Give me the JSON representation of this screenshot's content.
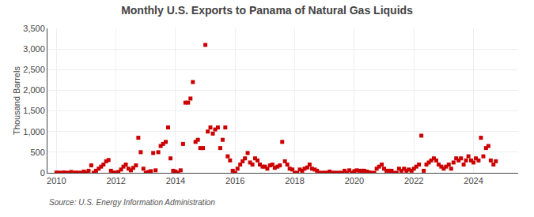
{
  "chart_data": {
    "type": "scatter",
    "title": "Monthly U.S. Exports to Panama of Natural Gas Liquids",
    "ylabel": "Thousand Barrels",
    "annotations": [
      "Source: U.S. Energy Information Administration"
    ],
    "color": "#cc0000",
    "marker": "square",
    "grid": true,
    "xlim": [
      2009.7,
      2025.5
    ],
    "xticks": [
      2010,
      2012,
      2014,
      2016,
      2018,
      2020,
      2022,
      2024
    ],
    "ylim": [
      0,
      3500
    ],
    "yticks": [
      0,
      500,
      {
        "value": 1000,
        "label": "1,000"
      },
      {
        "value": 1500,
        "label": "1,500"
      },
      {
        "value": 2000,
        "label": "2,000"
      },
      {
        "value": 2500,
        "label": "2,500"
      },
      {
        "value": 3000,
        "label": "3,000"
      },
      {
        "value": 3500,
        "label": "3,500"
      }
    ],
    "x": [
      2010.0,
      2010.08,
      2010.17,
      2010.25,
      2010.33,
      2010.42,
      2010.5,
      2010.58,
      2010.67,
      2010.75,
      2010.83,
      2010.92,
      2011.0,
      2011.08,
      2011.17,
      2011.25,
      2011.33,
      2011.42,
      2011.5,
      2011.58,
      2011.67,
      2011.75,
      2011.83,
      2011.92,
      2012.0,
      2012.08,
      2012.17,
      2012.25,
      2012.33,
      2012.42,
      2012.5,
      2012.58,
      2012.67,
      2012.75,
      2012.83,
      2012.92,
      2013.0,
      2013.08,
      2013.17,
      2013.25,
      2013.33,
      2013.42,
      2013.5,
      2013.58,
      2013.67,
      2013.75,
      2013.83,
      2013.92,
      2014.0,
      2014.08,
      2014.17,
      2014.25,
      2014.33,
      2014.42,
      2014.5,
      2014.58,
      2014.67,
      2014.75,
      2014.83,
      2014.92,
      2015.0,
      2015.08,
      2015.17,
      2015.25,
      2015.33,
      2015.42,
      2015.5,
      2015.58,
      2015.67,
      2015.75,
      2015.83,
      2015.92,
      2016.0,
      2016.08,
      2016.17,
      2016.25,
      2016.33,
      2016.42,
      2016.5,
      2016.58,
      2016.67,
      2016.75,
      2016.83,
      2016.92,
      2017.0,
      2017.08,
      2017.17,
      2017.25,
      2017.33,
      2017.42,
      2017.5,
      2017.58,
      2017.67,
      2017.75,
      2017.83,
      2017.92,
      2018.0,
      2018.08,
      2018.17,
      2018.25,
      2018.33,
      2018.42,
      2018.5,
      2018.58,
      2018.67,
      2018.75,
      2018.83,
      2018.92,
      2019.0,
      2019.08,
      2019.17,
      2019.25,
      2019.33,
      2019.42,
      2019.5,
      2019.58,
      2019.67,
      2019.75,
      2019.83,
      2019.92,
      2020.0,
      2020.08,
      2020.17,
      2020.25,
      2020.33,
      2020.42,
      2020.5,
      2020.58,
      2020.67,
      2020.75,
      2020.83,
      2020.92,
      2021.0,
      2021.08,
      2021.17,
      2021.25,
      2021.33,
      2021.42,
      2021.5,
      2021.58,
      2021.67,
      2021.75,
      2021.83,
      2021.92,
      2022.0,
      2022.08,
      2022.17,
      2022.25,
      2022.33,
      2022.42,
      2022.5,
      2022.58,
      2022.67,
      2022.75,
      2022.83,
      2022.92,
      2023.0,
      2023.08,
      2023.17,
      2023.25,
      2023.33,
      2023.42,
      2023.5,
      2023.58,
      2023.67,
      2023.75,
      2023.83,
      2023.92,
      2024.0,
      2024.08,
      2024.17,
      2024.25,
      2024.33,
      2024.42,
      2024.5,
      2024.58,
      2024.67,
      2024.75
    ],
    "values": [
      5,
      0,
      0,
      10,
      0,
      0,
      20,
      0,
      5,
      0,
      0,
      30,
      0,
      50,
      180,
      0,
      50,
      100,
      150,
      200,
      280,
      310,
      50,
      10,
      0,
      20,
      80,
      150,
      200,
      100,
      60,
      120,
      180,
      850,
      500,
      100,
      0,
      20,
      40,
      480,
      60,
      500,
      650,
      700,
      750,
      1100,
      350,
      50,
      30,
      0,
      60,
      700,
      1700,
      1700,
      1800,
      2200,
      750,
      800,
      600,
      600,
      3100,
      1000,
      1100,
      950,
      1050,
      1100,
      600,
      800,
      1100,
      400,
      300,
      50,
      0,
      100,
      200,
      280,
      350,
      480,
      250,
      200,
      350,
      300,
      200,
      150,
      150,
      100,
      180,
      200,
      120,
      150,
      180,
      750,
      280,
      200,
      100,
      80,
      0,
      0,
      80,
      50,
      100,
      130,
      200,
      100,
      80,
      50,
      0,
      0,
      0,
      0,
      30,
      0,
      0,
      0,
      0,
      0,
      50,
      0,
      60,
      0,
      40,
      60,
      50,
      50,
      50,
      30,
      10,
      0,
      0,
      100,
      150,
      200,
      100,
      50,
      50,
      50,
      0,
      0,
      100,
      50,
      100,
      50,
      80,
      50,
      100,
      150,
      200,
      900,
      50,
      200,
      250,
      300,
      350,
      300,
      200,
      150,
      100,
      150,
      200,
      100,
      250,
      350,
      300,
      350,
      200,
      300,
      400,
      300,
      250,
      350,
      300,
      850,
      400,
      600,
      650,
      300,
      200,
      280
    ]
  }
}
